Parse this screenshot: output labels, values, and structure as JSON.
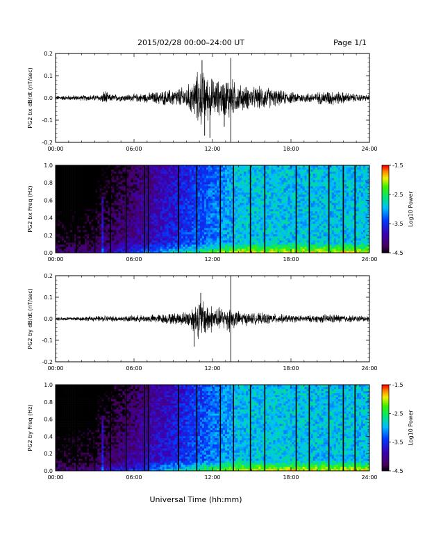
{
  "header": {
    "title": "2015/02/28  00:00–24:00 UT",
    "page": "Page 1/1"
  },
  "footer": {
    "xlabel": "Universal Time (hh:mm)"
  },
  "chart_data": [
    {
      "type": "line",
      "ylabel": "PG2 bx dB/dt (nT/sec)",
      "xlim": [
        0,
        24
      ],
      "ylim": [
        -0.2,
        0.2
      ],
      "x_ticks": [
        "00:00",
        "06:00",
        "12:00",
        "18:00",
        "24:00"
      ],
      "y_ticks": [
        "-0.2",
        "-0.1",
        "0.0",
        "0.1",
        "0.2"
      ],
      "envelope": {
        "hours": [
          0,
          2,
          3.5,
          3.8,
          4,
          5,
          6,
          7,
          8,
          9,
          10,
          10.5,
          11,
          11.5,
          12,
          12.5,
          13,
          13.3,
          13.6,
          14,
          15,
          16,
          17,
          18,
          19,
          20,
          21,
          22,
          23,
          24
        ],
        "amplitude": [
          0.012,
          0.014,
          0.018,
          0.045,
          0.02,
          0.018,
          0.02,
          0.025,
          0.035,
          0.045,
          0.06,
          0.09,
          0.15,
          0.12,
          0.1,
          0.09,
          0.1,
          0.12,
          0.09,
          0.07,
          0.055,
          0.06,
          0.04,
          0.03,
          0.025,
          0.03,
          0.04,
          0.03,
          0.02,
          0.015
        ]
      },
      "peaks": [
        {
          "hour": 11.2,
          "value": 0.17
        },
        {
          "hour": 11.4,
          "value": -0.17
        },
        {
          "hour": 11.8,
          "value": -0.18
        },
        {
          "hour": 12.9,
          "value": -0.13
        },
        {
          "hour": 13.4,
          "value": 0.18
        },
        {
          "hour": 13.4,
          "value": -0.2
        }
      ]
    },
    {
      "type": "heatmap",
      "ylabel": "PG2 bx Freq (Hz)",
      "xlim": [
        0,
        24
      ],
      "ylim": [
        0,
        1.0
      ],
      "x_ticks": [
        "00:00",
        "06:00",
        "12:00",
        "18:00",
        "24:00"
      ],
      "y_ticks": [
        "0.0",
        "0.2",
        "0.4",
        "0.6",
        "0.8",
        "1.0"
      ],
      "colorbar": {
        "label": "Log10 Power",
        "min": -4.5,
        "max": -1.5,
        "ticks": [
          "-1.5",
          "-2.5",
          "-3.5",
          "-4.5"
        ]
      },
      "data_gaps_hours": [
        1.6,
        3.0,
        4.2,
        5.4,
        6.8,
        7.1,
        9.4,
        10.8,
        12.6,
        13.6,
        14.9,
        16.0,
        18.4,
        19.4,
        20.9,
        22.0,
        22.9
      ]
    },
    {
      "type": "line",
      "ylabel": "PG2 by dB/dt (nT/sec)",
      "xlim": [
        0,
        24
      ],
      "ylim": [
        -0.2,
        0.2
      ],
      "x_ticks": [
        "00:00",
        "06:00",
        "12:00",
        "18:00",
        "24:00"
      ],
      "y_ticks": [
        "-0.2",
        "-0.1",
        "0.0",
        "0.1",
        "0.2"
      ],
      "envelope": {
        "hours": [
          0,
          2,
          3.5,
          3.8,
          4,
          5,
          6,
          7,
          8,
          9,
          10,
          10.5,
          11,
          11.5,
          12,
          12.5,
          13,
          13.3,
          13.6,
          14,
          15,
          16,
          17,
          18,
          19,
          20,
          21,
          22,
          23,
          24
        ],
        "amplitude": [
          0.01,
          0.012,
          0.015,
          0.02,
          0.016,
          0.015,
          0.018,
          0.02,
          0.025,
          0.03,
          0.04,
          0.07,
          0.11,
          0.09,
          0.07,
          0.06,
          0.06,
          0.08,
          0.05,
          0.04,
          0.03,
          0.03,
          0.025,
          0.02,
          0.018,
          0.02,
          0.025,
          0.02,
          0.018,
          0.015
        ]
      },
      "peaks": [
        {
          "hour": 10.6,
          "value": -0.13
        },
        {
          "hour": 11.1,
          "value": 0.12
        },
        {
          "hour": 13.4,
          "value": 0.2
        },
        {
          "hour": 13.4,
          "value": -0.2
        }
      ]
    },
    {
      "type": "heatmap",
      "ylabel": "PG2 by Freq (Hz)",
      "xlim": [
        0,
        24
      ],
      "ylim": [
        0,
        1.0
      ],
      "x_ticks": [
        "00:00",
        "06:00",
        "12:00",
        "18:00",
        "24:00"
      ],
      "y_ticks": [
        "0.0",
        "0.2",
        "0.4",
        "0.6",
        "0.8",
        "1.0"
      ],
      "colorbar": {
        "label": "Log10 Power",
        "min": -4.5,
        "max": -1.5,
        "ticks": [
          "-1.5",
          "-2.5",
          "-3.5",
          "-4.5"
        ]
      },
      "data_gaps_hours": [
        1.6,
        3.0,
        4.2,
        5.4,
        6.8,
        7.1,
        9.4,
        10.8,
        12.6,
        13.6,
        14.9,
        16.0,
        18.4,
        19.4,
        20.9,
        22.0,
        22.9
      ]
    }
  ]
}
